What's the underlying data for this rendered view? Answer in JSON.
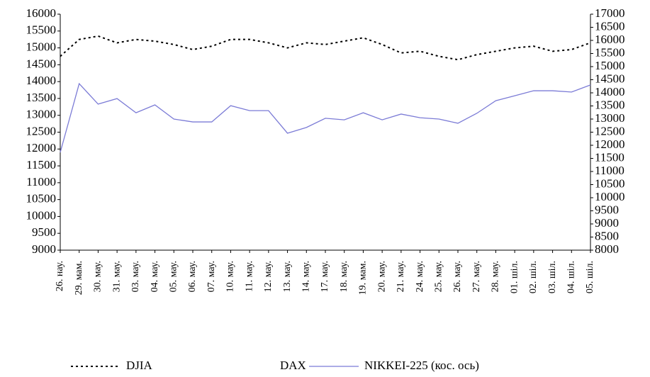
{
  "chart_data": {
    "type": "line",
    "categories": [
      "26. нау.",
      "29. мам.",
      "30. мау.",
      "31. мау.",
      "03. мау.",
      "04. мау.",
      "05. мау.",
      "06. мау.",
      "07. мау.",
      "10. мау.",
      "11. мау.",
      "12. мау.",
      "13. мау.",
      "14. мау.",
      "17. мау.",
      "18. мау.",
      "19. мам.",
      "20. мау.",
      "21. мау.",
      "24. мау.",
      "25. мау.",
      "26. мау.",
      "27. мау.",
      "28. мау.",
      "01. шіл.",
      "02. шіл.",
      "03. шіл.",
      "04. шіл.",
      "05. шіл."
    ],
    "series": [
      {
        "name": "DJIA",
        "color": "#000000",
        "dash": true,
        "values": [
          14750,
          15250,
          15350,
          15150,
          15250,
          15200,
          15100,
          14950,
          15050,
          15250,
          15250,
          15150,
          15000,
          15150,
          15100,
          15200,
          15300,
          15100,
          14850,
          14900,
          14750,
          14650,
          14800,
          14900,
          15000,
          15050,
          14900,
          14950,
          15150
        ]
      },
      {
        "name": "DAX",
        "values": [
          null,
          null,
          null,
          null,
          null,
          null,
          null,
          null,
          null,
          null,
          null,
          null,
          null,
          null,
          null,
          null,
          null,
          null,
          null,
          null,
          null,
          null,
          null,
          null,
          null,
          null,
          null,
          null,
          null
        ]
      },
      {
        "name": "NIKKEI-225 (кос. ось)",
        "color": "#7b7bd6",
        "axis": "y2",
        "values": [
          11730,
          14350,
          13570,
          13780,
          13240,
          13540,
          13000,
          12890,
          12890,
          13510,
          13320,
          13320,
          12460,
          12680,
          13030,
          12970,
          13240,
          12970,
          13190,
          13050,
          13000,
          12840,
          13220,
          13700,
          13890,
          14080,
          14080,
          14030,
          14300
        ]
      }
    ],
    "ylim": [
      9000,
      16000
    ],
    "yticks": [
      9000,
      9500,
      10000,
      10500,
      11000,
      11500,
      12000,
      12500,
      13000,
      13500,
      14000,
      14500,
      15000,
      15500,
      16000
    ],
    "y2lim": [
      8000,
      17000
    ],
    "y2ticks": [
      8000,
      8500,
      9000,
      9500,
      10000,
      10500,
      11000,
      11500,
      12000,
      12500,
      13000,
      13500,
      14000,
      14500,
      15000,
      15500,
      16000,
      16500,
      17000
    ]
  }
}
